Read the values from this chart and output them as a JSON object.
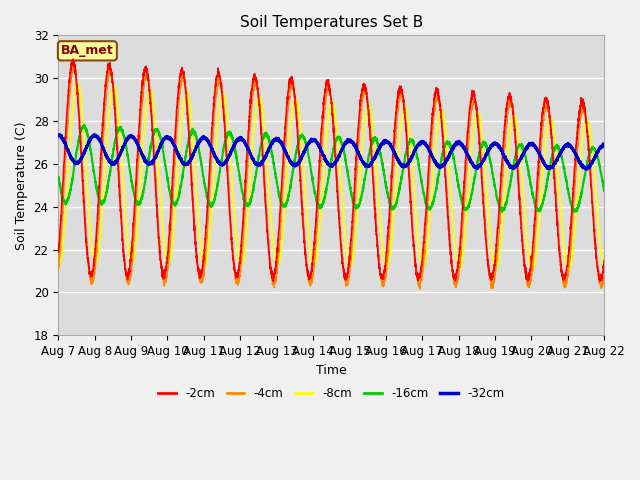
{
  "title": "Soil Temperatures Set B",
  "xlabel": "Time",
  "ylabel": "Soil Temperature (C)",
  "ylim": [
    18,
    32
  ],
  "xlim": [
    0,
    360
  ],
  "plot_bg_color": "#dcdcdc",
  "fig_bg_color": "#f0f0f0",
  "grid_color": "#ffffff",
  "label_box_text": "BA_met",
  "label_box_facecolor": "#ffff99",
  "label_box_edgecolor": "#8B4513",
  "legend_labels": [
    "-2cm",
    "-4cm",
    "-8cm",
    "-16cm",
    "-32cm"
  ],
  "line_colors": [
    "#ff0000",
    "#ff8800",
    "#ffff00",
    "#00cc00",
    "#0000cc"
  ],
  "tick_labels": [
    "Aug 7",
    "Aug 8",
    "Aug 9",
    "Aug 10",
    "Aug 11",
    "Aug 12",
    "Aug 13",
    "Aug 14",
    "Aug 15",
    "Aug 16",
    "Aug 17",
    "Aug 18",
    "Aug 19",
    "Aug 20",
    "Aug 21",
    "Aug 22"
  ],
  "tick_positions": [
    0,
    24,
    48,
    72,
    96,
    120,
    144,
    168,
    192,
    216,
    240,
    264,
    288,
    312,
    336,
    360
  ]
}
